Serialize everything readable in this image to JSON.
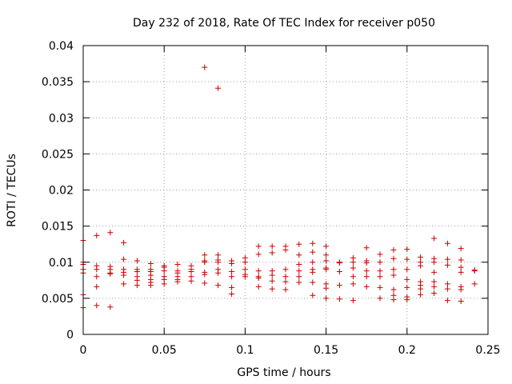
{
  "chart_data": {
    "type": "scatter",
    "title": "Day 232 of 2018, Rate Of TEC Index for receiver p050",
    "xlabel": "GPS time / hours",
    "ylabel": "ROTI / TECUs",
    "xlim": [
      0,
      0.25
    ],
    "ylim": [
      0,
      0.04
    ],
    "grid": true,
    "x_ticks": [
      "0",
      "0.05",
      "0.1",
      "0.15",
      "0.2",
      "0.25"
    ],
    "y_ticks": [
      "0",
      "0.005",
      "0.01",
      "0.015",
      "0.02",
      "0.025",
      "0.03",
      "0.035",
      "0.04"
    ],
    "marker": "+",
    "color": "#cc0000",
    "series": [
      {
        "name": "ROTI",
        "points": [
          [
            0.0,
            0.013
          ],
          [
            0.0,
            0.01
          ],
          [
            0.0,
            0.0097
          ],
          [
            0.0,
            0.009
          ],
          [
            0.0,
            0.0085
          ],
          [
            0.0,
            0.0055
          ],
          [
            0.0,
            0.0037
          ],
          [
            0.0083,
            0.0137
          ],
          [
            0.0083,
            0.0095
          ],
          [
            0.0083,
            0.009
          ],
          [
            0.0083,
            0.008
          ],
          [
            0.0083,
            0.0066
          ],
          [
            0.0083,
            0.004
          ],
          [
            0.0167,
            0.0141
          ],
          [
            0.0167,
            0.0094
          ],
          [
            0.0167,
            0.009
          ],
          [
            0.0167,
            0.0085
          ],
          [
            0.0167,
            0.0084
          ],
          [
            0.0167,
            0.0038
          ],
          [
            0.025,
            0.0127
          ],
          [
            0.025,
            0.0104
          ],
          [
            0.025,
            0.009
          ],
          [
            0.025,
            0.0086
          ],
          [
            0.025,
            0.0082
          ],
          [
            0.025,
            0.007
          ],
          [
            0.0333,
            0.0102
          ],
          [
            0.0333,
            0.009
          ],
          [
            0.0333,
            0.0087
          ],
          [
            0.0333,
            0.008
          ],
          [
            0.0333,
            0.0075
          ],
          [
            0.0333,
            0.0068
          ],
          [
            0.0417,
            0.0098
          ],
          [
            0.0417,
            0.009
          ],
          [
            0.0417,
            0.0087
          ],
          [
            0.0417,
            0.0082
          ],
          [
            0.0417,
            0.0076
          ],
          [
            0.0417,
            0.0072
          ],
          [
            0.0417,
            0.0068
          ],
          [
            0.05,
            0.0095
          ],
          [
            0.05,
            0.0093
          ],
          [
            0.05,
            0.0088
          ],
          [
            0.05,
            0.008
          ],
          [
            0.05,
            0.0076
          ],
          [
            0.05,
            0.007
          ],
          [
            0.0583,
            0.0097
          ],
          [
            0.0583,
            0.0088
          ],
          [
            0.0583,
            0.0085
          ],
          [
            0.0583,
            0.008
          ],
          [
            0.0583,
            0.0076
          ],
          [
            0.0583,
            0.0073
          ],
          [
            0.0667,
            0.0095
          ],
          [
            0.0667,
            0.009
          ],
          [
            0.0667,
            0.0087
          ],
          [
            0.0667,
            0.008
          ],
          [
            0.0667,
            0.0074
          ],
          [
            0.075,
            0.037
          ],
          [
            0.075,
            0.011
          ],
          [
            0.075,
            0.0102
          ],
          [
            0.075,
            0.01
          ],
          [
            0.075,
            0.0086
          ],
          [
            0.075,
            0.0083
          ],
          [
            0.075,
            0.0071
          ],
          [
            0.0833,
            0.0341
          ],
          [
            0.0833,
            0.011
          ],
          [
            0.0833,
            0.0103
          ],
          [
            0.0833,
            0.01
          ],
          [
            0.0833,
            0.009
          ],
          [
            0.0833,
            0.0085
          ],
          [
            0.0833,
            0.0068
          ],
          [
            0.0917,
            0.0102
          ],
          [
            0.0917,
            0.0098
          ],
          [
            0.0917,
            0.0087
          ],
          [
            0.0917,
            0.008
          ],
          [
            0.0917,
            0.0065
          ],
          [
            0.0917,
            0.0056
          ],
          [
            0.1,
            0.0106
          ],
          [
            0.1,
            0.01
          ],
          [
            0.1,
            0.009
          ],
          [
            0.1,
            0.0083
          ],
          [
            0.1,
            0.008
          ],
          [
            0.1083,
            0.0122
          ],
          [
            0.1083,
            0.0111
          ],
          [
            0.1083,
            0.0088
          ],
          [
            0.1083,
            0.008
          ],
          [
            0.1083,
            0.0078
          ],
          [
            0.1083,
            0.0066
          ],
          [
            0.1167,
            0.0122
          ],
          [
            0.1167,
            0.0113
          ],
          [
            0.1167,
            0.0088
          ],
          [
            0.1167,
            0.0082
          ],
          [
            0.1167,
            0.0074
          ],
          [
            0.1167,
            0.0063
          ],
          [
            0.125,
            0.0122
          ],
          [
            0.125,
            0.0117
          ],
          [
            0.125,
            0.009
          ],
          [
            0.125,
            0.008
          ],
          [
            0.125,
            0.0073
          ],
          [
            0.125,
            0.0062
          ],
          [
            0.1333,
            0.0125
          ],
          [
            0.1333,
            0.011
          ],
          [
            0.1333,
            0.0097
          ],
          [
            0.1333,
            0.0088
          ],
          [
            0.1333,
            0.008
          ],
          [
            0.1333,
            0.0072
          ],
          [
            0.1417,
            0.0126
          ],
          [
            0.1417,
            0.0114
          ],
          [
            0.1417,
            0.01
          ],
          [
            0.1417,
            0.009
          ],
          [
            0.1417,
            0.0086
          ],
          [
            0.1417,
            0.0072
          ],
          [
            0.1417,
            0.0054
          ],
          [
            0.15,
            0.0122
          ],
          [
            0.15,
            0.011
          ],
          [
            0.15,
            0.0102
          ],
          [
            0.15,
            0.0092
          ],
          [
            0.15,
            0.009
          ],
          [
            0.15,
            0.007
          ],
          [
            0.15,
            0.0064
          ],
          [
            0.15,
            0.005
          ],
          [
            0.1583,
            0.01
          ],
          [
            0.1583,
            0.0099
          ],
          [
            0.1583,
            0.0087
          ],
          [
            0.1583,
            0.0068
          ],
          [
            0.1583,
            0.0049
          ],
          [
            0.1667,
            0.0106
          ],
          [
            0.1667,
            0.01
          ],
          [
            0.1667,
            0.0092
          ],
          [
            0.1667,
            0.008
          ],
          [
            0.1667,
            0.007
          ],
          [
            0.1667,
            0.0047
          ],
          [
            0.175,
            0.012
          ],
          [
            0.175,
            0.0102
          ],
          [
            0.175,
            0.0099
          ],
          [
            0.175,
            0.0088
          ],
          [
            0.175,
            0.008
          ],
          [
            0.175,
            0.0066
          ],
          [
            0.1833,
            0.0111
          ],
          [
            0.1833,
            0.01
          ],
          [
            0.1833,
            0.0088
          ],
          [
            0.1833,
            0.008
          ],
          [
            0.1833,
            0.0065
          ],
          [
            0.1833,
            0.005
          ],
          [
            0.1917,
            0.0117
          ],
          [
            0.1917,
            0.0105
          ],
          [
            0.1917,
            0.009
          ],
          [
            0.1917,
            0.0082
          ],
          [
            0.1917,
            0.0062
          ],
          [
            0.1917,
            0.0054
          ],
          [
            0.1917,
            0.0048
          ],
          [
            0.2,
            0.0118
          ],
          [
            0.2,
            0.0104
          ],
          [
            0.2,
            0.009
          ],
          [
            0.2,
            0.0076
          ],
          [
            0.2,
            0.0065
          ],
          [
            0.2,
            0.0052
          ],
          [
            0.2,
            0.0048
          ],
          [
            0.2083,
            0.0107
          ],
          [
            0.2083,
            0.01
          ],
          [
            0.2083,
            0.0095
          ],
          [
            0.2083,
            0.0073
          ],
          [
            0.2083,
            0.0068
          ],
          [
            0.2083,
            0.0063
          ],
          [
            0.2083,
            0.0055
          ],
          [
            0.2167,
            0.0133
          ],
          [
            0.2167,
            0.0105
          ],
          [
            0.2167,
            0.01
          ],
          [
            0.2167,
            0.0086
          ],
          [
            0.2167,
            0.0073
          ],
          [
            0.2167,
            0.0066
          ],
          [
            0.2167,
            0.0057
          ],
          [
            0.225,
            0.0126
          ],
          [
            0.225,
            0.0104
          ],
          [
            0.225,
            0.0096
          ],
          [
            0.225,
            0.007
          ],
          [
            0.225,
            0.0063
          ],
          [
            0.225,
            0.0047
          ],
          [
            0.2333,
            0.0119
          ],
          [
            0.2333,
            0.0103
          ],
          [
            0.2333,
            0.0093
          ],
          [
            0.2333,
            0.0086
          ],
          [
            0.2333,
            0.0066
          ],
          [
            0.2333,
            0.0062
          ],
          [
            0.2333,
            0.0046
          ],
          [
            0.2417,
            0.0089
          ],
          [
            0.2417,
            0.0088
          ],
          [
            0.2417,
            0.007
          ]
        ]
      }
    ]
  }
}
